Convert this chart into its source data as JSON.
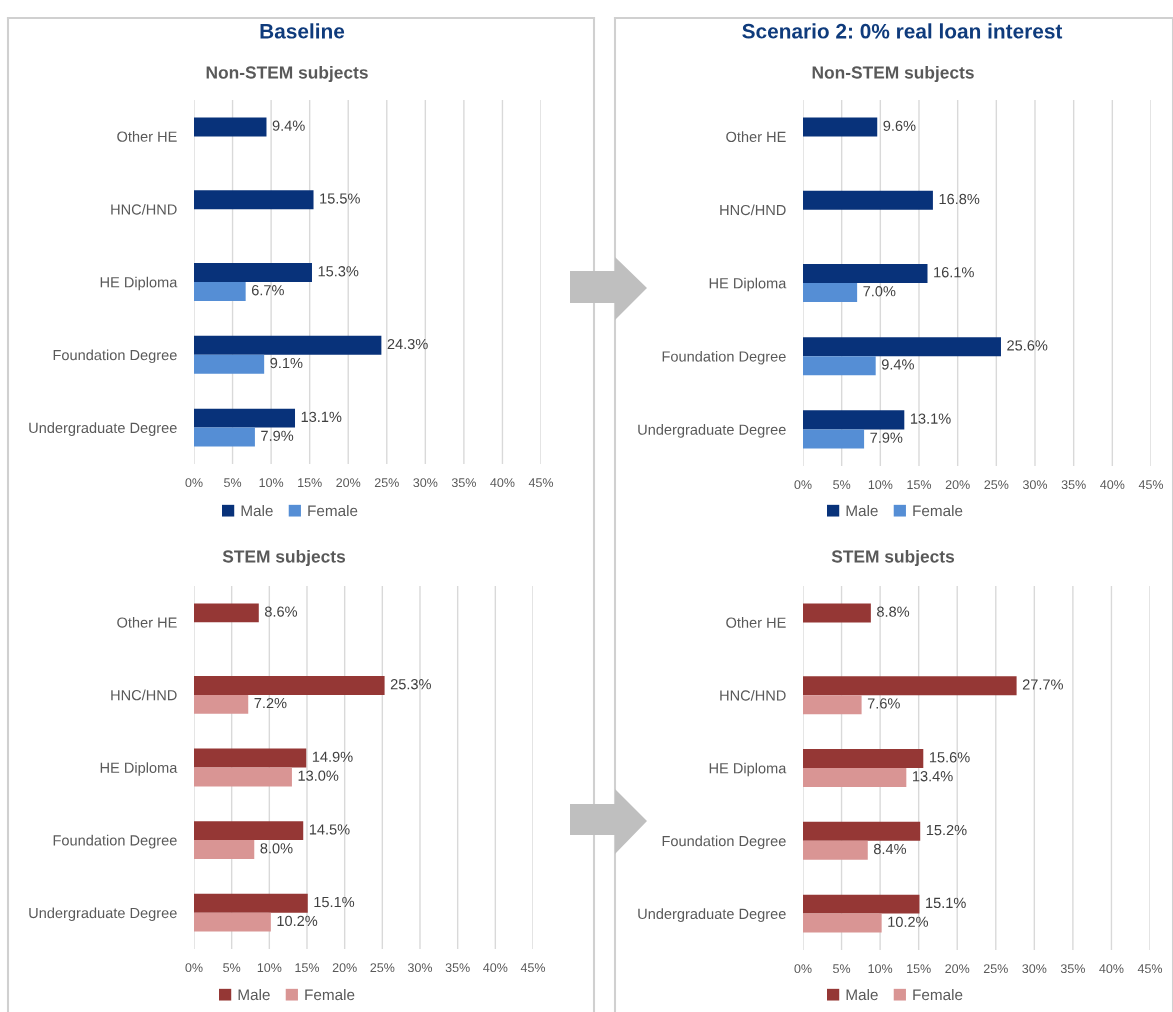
{
  "chart_data": [
    {
      "type": "bar",
      "orientation": "horizontal",
      "title": "Non-STEM subjects",
      "annotations": [
        "Baseline"
      ],
      "categories": [
        "Other HE",
        "HNC/HND",
        "HE Diploma",
        "Foundation Degree",
        "Undergraduate Degree"
      ],
      "series": [
        {
          "name": "Male",
          "color": "#08327a",
          "values": [
            9.4,
            15.5,
            15.3,
            24.3,
            13.1
          ],
          "value_labels": [
            "9.4%",
            "15.5%",
            "15.3%",
            "24.3%",
            "13.1%"
          ]
        },
        {
          "name": "Female",
          "color": "#558ed5",
          "values": [
            null,
            null,
            6.7,
            9.1,
            7.9
          ],
          "value_labels": [
            null,
            null,
            "6.7%",
            "9.1%",
            "7.9%"
          ]
        }
      ],
      "xlim": [
        0,
        45
      ],
      "xticks": [
        {
          "value": 0,
          "label": "0%"
        },
        {
          "value": 5,
          "label": "5%"
        },
        {
          "value": 10,
          "label": "10%"
        },
        {
          "value": 15,
          "label": "15%"
        },
        {
          "value": 20,
          "label": "20%"
        },
        {
          "value": 25,
          "label": "25%"
        },
        {
          "value": 30,
          "label": "30%"
        },
        {
          "value": 35,
          "label": "35%"
        },
        {
          "value": 40,
          "label": "40%"
        },
        {
          "value": 45,
          "label": "45%"
        }
      ],
      "grid": "x",
      "legend": "bottom"
    },
    {
      "type": "bar",
      "orientation": "horizontal",
      "title": "Non-STEM subjects",
      "annotations": [
        "Scenario 2: 0% real loan interest"
      ],
      "categories": [
        "Other HE",
        "HNC/HND",
        "HE Diploma",
        "Foundation Degree",
        "Undergraduate Degree"
      ],
      "series": [
        {
          "name": "Male",
          "color": "#08327a",
          "values": [
            9.6,
            16.8,
            16.1,
            25.6,
            13.1
          ],
          "value_labels": [
            "9.6%",
            "16.8%",
            "16.1%",
            "25.6%",
            "13.1%"
          ]
        },
        {
          "name": "Female",
          "color": "#558ed5",
          "values": [
            null,
            null,
            7.0,
            9.4,
            7.9
          ],
          "value_labels": [
            null,
            null,
            "7.0%",
            "9.4%",
            "7.9%"
          ]
        }
      ],
      "xlim": [
        0,
        45
      ],
      "xticks": [
        {
          "value": 0,
          "label": "0%"
        },
        {
          "value": 5,
          "label": "5%"
        },
        {
          "value": 10,
          "label": "10%"
        },
        {
          "value": 15,
          "label": "15%"
        },
        {
          "value": 20,
          "label": "20%"
        },
        {
          "value": 25,
          "label": "25%"
        },
        {
          "value": 30,
          "label": "30%"
        },
        {
          "value": 35,
          "label": "35%"
        },
        {
          "value": 40,
          "label": "40%"
        },
        {
          "value": 45,
          "label": "45%"
        }
      ],
      "grid": "x",
      "legend": "bottom"
    },
    {
      "type": "bar",
      "orientation": "horizontal",
      "title": "STEM subjects",
      "categories": [
        "Other HE",
        "HNC/HND",
        "HE Diploma",
        "Foundation Degree",
        "Undergraduate Degree"
      ],
      "series": [
        {
          "name": "Male",
          "color": "#953735",
          "values": [
            8.6,
            25.3,
            14.9,
            14.5,
            15.1
          ],
          "value_labels": [
            "8.6%",
            "25.3%",
            "14.9%",
            "14.5%",
            "15.1%"
          ]
        },
        {
          "name": "Female",
          "color": "#d99594",
          "values": [
            null,
            7.2,
            13.0,
            8.0,
            10.2
          ],
          "value_labels": [
            null,
            "7.2%",
            "13.0%",
            "8.0%",
            "10.2%"
          ]
        }
      ],
      "xlim": [
        0,
        45
      ],
      "xticks": [
        {
          "value": 0,
          "label": "0%"
        },
        {
          "value": 5,
          "label": "5%"
        },
        {
          "value": 10,
          "label": "10%"
        },
        {
          "value": 15,
          "label": "15%"
        },
        {
          "value": 20,
          "label": "20%"
        },
        {
          "value": 25,
          "label": "25%"
        },
        {
          "value": 30,
          "label": "30%"
        },
        {
          "value": 35,
          "label": "35%"
        },
        {
          "value": 40,
          "label": "40%"
        },
        {
          "value": 45,
          "label": "45%"
        }
      ],
      "grid": "x",
      "legend": "bottom"
    },
    {
      "type": "bar",
      "orientation": "horizontal",
      "title": "STEM subjects",
      "categories": [
        "Other HE",
        "HNC/HND",
        "HE Diploma",
        "Foundation Degree",
        "Undergraduate Degree"
      ],
      "series": [
        {
          "name": "Male",
          "color": "#953735",
          "values": [
            8.8,
            27.7,
            15.6,
            15.2,
            15.1
          ],
          "value_labels": [
            "8.8%",
            "27.7%",
            "15.6%",
            "15.2%",
            "15.1%"
          ]
        },
        {
          "name": "Female",
          "color": "#d99594",
          "values": [
            null,
            7.6,
            13.4,
            8.4,
            10.2
          ],
          "value_labels": [
            null,
            "7.6%",
            "13.4%",
            "8.4%",
            "10.2%"
          ]
        }
      ],
      "xlim": [
        0,
        45
      ],
      "xticks": [
        {
          "value": 0,
          "label": "0%"
        },
        {
          "value": 5,
          "label": "5%"
        },
        {
          "value": 10,
          "label": "10%"
        },
        {
          "value": 15,
          "label": "15%"
        },
        {
          "value": 20,
          "label": "20%"
        },
        {
          "value": 25,
          "label": "25%"
        },
        {
          "value": 30,
          "label": "30%"
        },
        {
          "value": 35,
          "label": "35%"
        },
        {
          "value": 40,
          "label": "40%"
        },
        {
          "value": 45,
          "label": "45%"
        }
      ],
      "grid": "x",
      "legend": "bottom"
    }
  ]
}
